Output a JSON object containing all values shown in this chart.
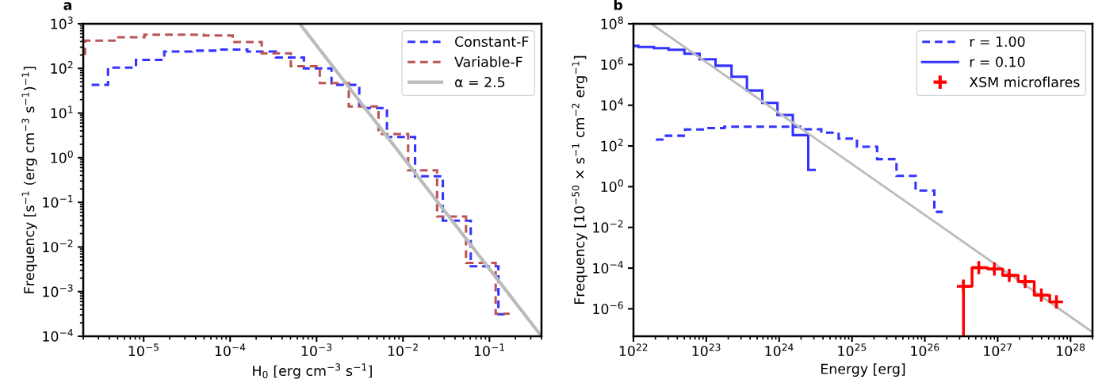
{
  "chart_data": [
    {
      "type": "histogram",
      "title": "a",
      "xlabel": "H$_{0}$ [erg cm$^{−3}$ s$^{−1}$]",
      "ylabel": "Frequency [s$^{−1}$ (erg cm$^{−3}$ s$^{−1}$)$^{−1}$]",
      "log": "xy",
      "grid": false,
      "legend": "top right",
      "xlim": [
        2e-06,
        0.4
      ],
      "ylim": [
        0.0001,
        1000
      ],
      "xticks": [
        {
          "value": 1e-05,
          "label": "10$^{−5}$"
        },
        {
          "value": 0.0001,
          "label": "10$^{−4}$"
        },
        {
          "value": 0.001,
          "label": "10$^{−3}$"
        },
        {
          "value": 0.01,
          "label": "10$^{−2}$"
        },
        {
          "value": 0.1,
          "label": "10$^{−1}$"
        }
      ],
      "yticks": [
        {
          "value": 0.0001,
          "label": "10$^{−4}$"
        },
        {
          "value": 0.001,
          "label": "10$^{−3}$"
        },
        {
          "value": 0.01,
          "label": "10$^{−2}$"
        },
        {
          "value": 0.1,
          "label": "10$^{−1}$"
        },
        {
          "value": 1,
          "label": "10$^{0}$"
        },
        {
          "value": 10,
          "label": "10$^{1}$"
        },
        {
          "value": 100,
          "label": "10$^{2}$"
        },
        {
          "value": 1000,
          "label": "10$^{3}$"
        }
      ],
      "series": [
        {
          "name": "Constant-F",
          "color": "#3333ff",
          "line_style": "dashed",
          "bins": [
            2.5e-06,
            3.87e-06,
            8.15e-06,
            1.73e-05,
            3.63e-05,
            7.55e-05,
            0.000158,
            0.000339,
            0.000714,
            0.00149,
            0.00312,
            0.00652,
            0.0138,
            0.0289,
            0.0608,
            0.127,
            0.171
          ],
          "values": [
            43,
            104,
            156,
            239,
            250,
            265,
            239,
            176,
            100,
            43,
            13,
            2.9,
            0.385,
            0.039,
            0.0037,
            0.00031
          ]
        },
        {
          "name": "Variable-F",
          "color": "#bb5555",
          "line_style": "dashed",
          "bins": [
            2e-06,
            2.1e-06,
            4.89e-06,
            1.02e-05,
            2.21e-05,
            4.95e-05,
            0.000107,
            0.000232,
            0.000504,
            0.00109,
            0.00236,
            0.00521,
            0.01146,
            0.0248,
            0.0536,
            0.118,
            0.171
          ],
          "values": [
            214,
            420,
            500,
            570,
            570,
            545,
            390,
            218,
            112,
            47,
            14,
            3.4,
            0.52,
            0.048,
            0.0044,
            0.00032
          ]
        },
        {
          "name": "α = 2.5",
          "type": "line",
          "color": "#bbbbbb",
          "line_style": "solid",
          "x": [
            0.00064,
            0.4
          ],
          "values": [
            1000,
            0.0001
          ]
        }
      ]
    },
    {
      "type": "histogram",
      "title": "b",
      "xlabel": "Energy [erg]",
      "ylabel": "Frequency [10$^{−50}$ × s$^{−1}$ cm$^{−2}$ erg$^{−1}$]",
      "log": "xy",
      "grid": false,
      "legend": "top right",
      "xlim": [
        1e+22,
        2e+28
      ],
      "ylim": [
        4.5e-08,
        100000000.0
      ],
      "xticks": [
        {
          "value": 1e+22,
          "label": "10$^{22}$"
        },
        {
          "value": 1e+23,
          "label": "10$^{23}$"
        },
        {
          "value": 1e+24,
          "label": "10$^{24}$"
        },
        {
          "value": 1e+25,
          "label": "10$^{25}$"
        },
        {
          "value": 1e+26,
          "label": "10$^{26}$"
        },
        {
          "value": 1e+27,
          "label": "10$^{27}$"
        },
        {
          "value": 1e+28,
          "label": "10$^{28}$"
        }
      ],
      "yticks": [
        {
          "value": 1e-06,
          "label": "10$^{−6}$"
        },
        {
          "value": 0.0001,
          "label": "10$^{−4}$"
        },
        {
          "value": 0.01,
          "label": "10$^{−2}$"
        },
        {
          "value": 1,
          "label": "10$^{0}$"
        },
        {
          "value": 100,
          "label": "10$^{2}$"
        },
        {
          "value": 10000.0,
          "label": "10$^{4}$"
        },
        {
          "value": 1000000.0,
          "label": "10$^{6}$"
        },
        {
          "value": 100000000.0,
          "label": "10$^{8}$"
        }
      ],
      "series": [
        {
          "name": "r = 1.00",
          "color": "#3333ff",
          "line_style": "dashed",
          "bins": [
            2.03e+22,
            2.79e+22,
            5.11e+22,
            1.07e+23,
            1.77e+23,
            1.94e+24,
            3.79e+24,
            6.55e+24,
            1.17e+25,
            2.21e+25,
            4.08e+25,
            7.46e+25,
            1.35e+26,
            1.76e+26
          ],
          "values": [
            206,
            318,
            640,
            760,
            880,
            660,
            450,
            231,
            91,
            22.6,
            3.4,
            0.65,
            0.058
          ]
        },
        {
          "name": "r = 0.10",
          "color": "#3333ff",
          "line_style": "solid",
          "bins": [
            1e+22,
            1.17e+22,
            1.91e+22,
            3.03e+22,
            5.01e+22,
            8.09e+22,
            1.34e+23,
            2.22e+23,
            3.61e+23,
            5.87e+23,
            9.48e+23,
            1.54e+24,
            2.51e+24,
            3.19e+24
          ],
          "values": [
            8200000.0,
            7300000.0,
            6300000.0,
            5300000.0,
            3400000.0,
            1800000.0,
            870000.0,
            250000.0,
            53000.0,
            13000.0,
            3300,
            340,
            6.7
          ]
        },
        {
          "type": "line",
          "color": "#bbbbbb",
          "line_style": "solid",
          "x": [
            1.76e+22,
            2e+28
          ],
          "values": [
            100000000.0,
            7.2e-08
          ]
        },
        {
          "name": "XSM microflares",
          "type": "step",
          "color": "#ff0000",
          "line_style": "solid",
          "marker": "cross",
          "x": [
            3.39e+26,
            5.5e+26,
            9e+26,
            1.44e+27,
            2.38e+27,
            3.97e+27,
            6.4e+27
          ],
          "values": [
            1.29e-05,
            0.000105,
            9.1e-05,
            4.4e-05,
            2.2e-05,
            4.7e-06,
            2.2e-06
          ],
          "errors": [
            [
              4.5e-08,
              2.45e-05
            ],
            [
              7.5e-05,
              0.000135
            ],
            [
              6.6e-05,
              0.00012
            ],
            [
              3.1e-05,
              5.9e-05
            ],
            [
              1.5e-05,
              3e-05
            ],
            [
              3e-06,
              6.6e-06
            ],
            [
              1.1e-06,
              3.2e-06
            ]
          ]
        }
      ]
    }
  ]
}
